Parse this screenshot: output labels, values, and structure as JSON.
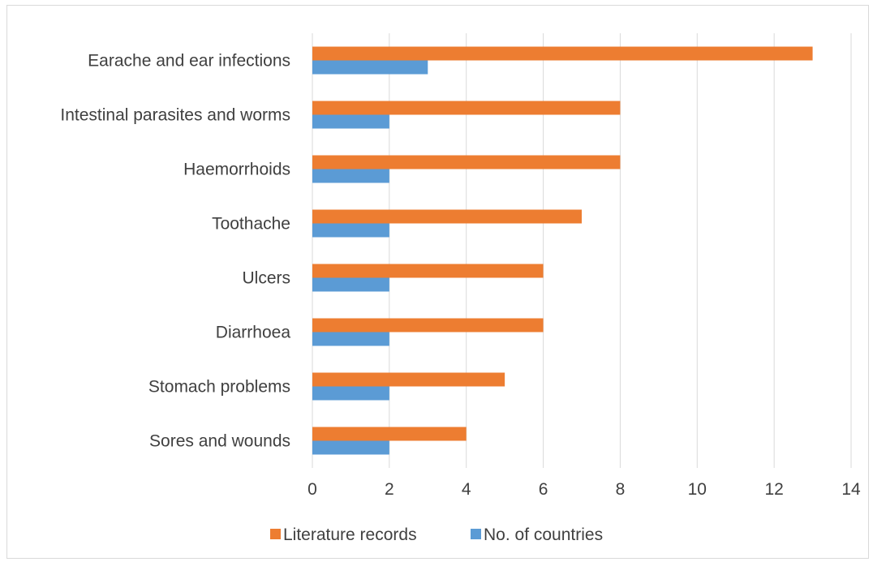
{
  "chart_data": {
    "type": "bar",
    "orientation": "horizontal",
    "categories": [
      "Earache and ear infections",
      "Intestinal parasites and worms",
      "Haemorrhoids",
      "Toothache",
      "Ulcers",
      "Diarrhoea",
      "Stomach problems",
      "Sores and wounds"
    ],
    "series": [
      {
        "name": "Literature records",
        "color": "#ED7D31",
        "values": [
          13,
          8,
          8,
          7,
          6,
          6,
          5,
          4
        ]
      },
      {
        "name": "No. of countries",
        "color": "#5B9BD5",
        "values": [
          3,
          2,
          2,
          2,
          2,
          2,
          2,
          2
        ]
      }
    ],
    "xlim": [
      0,
      14
    ],
    "xticks": [
      "0",
      "2",
      "4",
      "6",
      "8",
      "10",
      "12",
      "14"
    ],
    "grid": "vertical",
    "legend_position": "bottom"
  }
}
